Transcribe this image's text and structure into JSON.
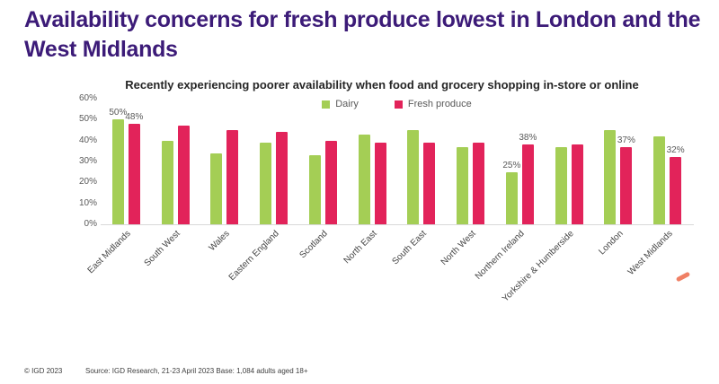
{
  "slide": {
    "title": "Availability concerns for fresh produce lowest in London and the West Midlands",
    "footer": {
      "copyright": "© IGD 2023",
      "source": "Source: IGD Research, 21-23 April 2023 Base: 1,084 adults aged 18+"
    }
  },
  "colors": {
    "title_purple": "#3C1B78",
    "dairy_green": "#A4CE55",
    "fresh_produce_pink": "#E2235A",
    "axis_text_gray": "#595959",
    "baseline_gray": "#D9D9D9",
    "accent_coral": "#F08065"
  },
  "chart_data": {
    "type": "bar",
    "title": "Recently experiencing poorer availability when food and grocery shopping in-store or online",
    "categories": [
      "East Midlands",
      "South West",
      "Wales",
      "Eastern England",
      "Scotland",
      "North East",
      "South East",
      "North West",
      "Northern Ireland",
      "Yorkshire & Humberside",
      "London",
      "West Midlands"
    ],
    "series": [
      {
        "name": "Dairy",
        "color": "#A4CE55",
        "values": [
          50,
          40,
          34,
          39,
          33,
          43,
          45,
          37,
          25,
          37,
          45,
          42
        ],
        "data_labels": [
          "50%",
          null,
          null,
          null,
          null,
          null,
          null,
          null,
          "25%",
          null,
          null,
          null
        ]
      },
      {
        "name": "Fresh produce",
        "color": "#E2235A",
        "values": [
          48,
          47,
          45,
          44,
          40,
          39,
          39,
          39,
          38,
          38,
          37,
          32
        ],
        "data_labels": [
          "48%",
          null,
          null,
          null,
          null,
          null,
          null,
          null,
          "38%",
          null,
          "37%",
          "32%"
        ]
      }
    ],
    "xlabel": "",
    "ylabel": "",
    "ylim": [
      0,
      60
    ],
    "yticks": [
      "0%",
      "10%",
      "20%",
      "30%",
      "40%",
      "50%",
      "60%"
    ],
    "legend_position": "top-center",
    "grid": false
  }
}
